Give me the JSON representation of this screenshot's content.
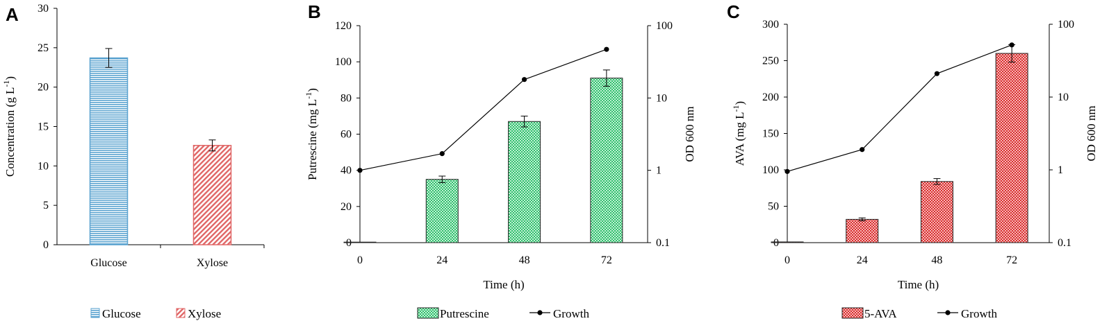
{
  "chart_data": [
    {
      "panel": "A",
      "type": "bar",
      "categories": [
        "Glucose",
        "Xylose"
      ],
      "values": [
        23.7,
        12.6
      ],
      "errors": [
        1.2,
        0.7
      ],
      "ylabel": "Concentration (g L-1)",
      "ylim": [
        0,
        30
      ],
      "yticks": [
        0,
        5,
        10,
        15,
        20,
        25,
        30
      ],
      "legend": [
        "Glucose",
        "Xylose"
      ],
      "legend_position": "bottom",
      "colors": [
        "#5ba3d0",
        "#e06666"
      ]
    },
    {
      "panel": "B",
      "type": "bar",
      "x": [
        0,
        24,
        48,
        72
      ],
      "xlabel": "Time (h)",
      "xlim": [
        0,
        84
      ],
      "ylabel": "Putrescine (mg L-1)",
      "ylim": [
        0,
        120
      ],
      "yticks": [
        0,
        20,
        40,
        60,
        80,
        100,
        120
      ],
      "y2label": "OD 600 nm",
      "y2scale": "log",
      "y2lim": [
        0.1,
        100
      ],
      "y2ticks": [
        "0.1",
        "1",
        "10",
        "100"
      ],
      "series": [
        {
          "name": "Putrescine",
          "type": "bar",
          "values": [
            0.3,
            35,
            67,
            91
          ],
          "errors": [
            0,
            1.8,
            3.0,
            4.5
          ],
          "color": "#3ec97a"
        },
        {
          "name": "Growth",
          "type": "line",
          "axis": "right",
          "values": [
            1.0,
            1.7,
            18,
            47
          ],
          "color": "#000000"
        }
      ],
      "legend_position": "bottom"
    },
    {
      "panel": "C",
      "type": "bar",
      "x": [
        0,
        24,
        48,
        72
      ],
      "xlabel": "Time (h)",
      "xlim": [
        0,
        84
      ],
      "ylabel": "AVA (mg L-1)",
      "ylim": [
        0,
        300
      ],
      "yticks": [
        0,
        50,
        100,
        150,
        200,
        250,
        300
      ],
      "y2label": "OD 600 nm",
      "y2scale": "log",
      "y2lim": [
        0.1,
        100
      ],
      "y2ticks": [
        "0.1",
        "1",
        "10",
        "100"
      ],
      "series": [
        {
          "name": "5-AVA",
          "type": "bar",
          "values": [
            1,
            32,
            84,
            260
          ],
          "errors": [
            0,
            2,
            4,
            12
          ],
          "color": "#e03a3a"
        },
        {
          "name": "Growth",
          "type": "line",
          "axis": "right",
          "values": [
            0.95,
            1.9,
            21,
            52
          ],
          "color": "#000000"
        }
      ],
      "legend_position": "bottom"
    }
  ]
}
